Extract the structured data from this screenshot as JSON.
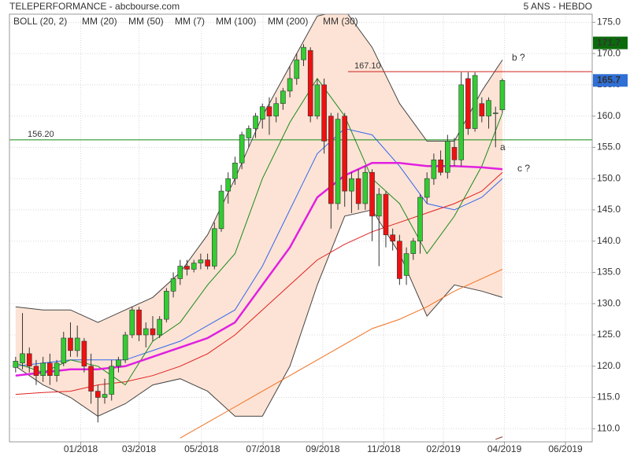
{
  "chart_data": {
    "type": "candlestick",
    "title": "TELEPERFORMANCE - abcbourse.com",
    "subtitle": "5 ANS - HEBDO",
    "x": [
      0,
      1,
      2,
      3,
      4,
      5,
      6,
      7,
      8,
      9,
      10,
      11,
      12,
      13,
      14,
      15,
      16,
      17,
      18,
      19,
      20,
      21,
      22,
      23,
      24,
      25,
      26,
      27,
      28,
      29,
      30,
      31,
      32,
      33,
      34,
      35,
      36,
      37,
      38,
      39,
      40,
      41,
      42,
      43,
      44,
      45,
      46,
      47,
      48,
      49,
      50,
      51,
      52,
      53,
      54,
      55,
      56,
      57,
      58,
      59,
      60,
      61,
      62,
      63,
      64,
      65,
      66,
      67,
      68,
      69,
      70,
      71
    ],
    "open": [
      119.8,
      120.5,
      122,
      120,
      118.5,
      120.5,
      118.5,
      120.5,
      124.5,
      122.5,
      124,
      120,
      116,
      115,
      115.5,
      120,
      121,
      125,
      129,
      125,
      126,
      125,
      127.5,
      132,
      134,
      136,
      135.5,
      136.5,
      137,
      136,
      142,
      148,
      150,
      152.5,
      156.5,
      158,
      159.5,
      161.5,
      160,
      162,
      164,
      166,
      169,
      170.5,
      160,
      165,
      160,
      146,
      160,
      148,
      150,
      146,
      151,
      144,
      147.5,
      141,
      140,
      134.5,
      138,
      140,
      147,
      150,
      153,
      151,
      155,
      153,
      166,
      158,
      162,
      160,
      160.5,
      161
    ],
    "high": [
      121.5,
      128.5,
      123,
      121,
      121.5,
      122,
      121,
      125.5,
      127,
      126.5,
      124.5,
      122,
      117,
      118,
      121,
      121.5,
      125.5,
      129.5,
      129.5,
      127,
      128,
      128,
      132.5,
      135,
      137,
      137,
      137,
      138,
      138,
      143,
      149,
      151,
      153.5,
      157.5,
      158.5,
      160.5,
      162,
      163,
      163,
      164.5,
      168,
      170,
      171.5,
      171,
      166,
      166,
      160.5,
      160.5,
      160.5,
      151,
      151.5,
      152,
      151.5,
      148.5,
      148,
      142,
      141,
      139,
      140.5,
      147.5,
      151,
      154,
      154.5,
      157,
      156.5,
      167,
      167,
      167,
      163,
      163,
      161.5,
      166
    ],
    "low": [
      119,
      119.5,
      119,
      117,
      117.5,
      117,
      117.5,
      120,
      121.5,
      121.5,
      119,
      114,
      111,
      114,
      114.5,
      119,
      120.5,
      124.5,
      124,
      123,
      124,
      124.5,
      127,
      131,
      133,
      134.5,
      135,
      135.5,
      135.5,
      135.5,
      141.5,
      146,
      149,
      151.5,
      155,
      156.5,
      158,
      157,
      159,
      161,
      163,
      165,
      168,
      159,
      159.5,
      154,
      142,
      145,
      145.5,
      144.5,
      145,
      145,
      140,
      136,
      139,
      138.5,
      133,
      133,
      137,
      138,
      146,
      149,
      150.5,
      150,
      152,
      152,
      157,
      157.5,
      159,
      158,
      155,
      160.5
    ],
    "close": [
      120.8,
      122,
      120,
      118.5,
      120.5,
      118.5,
      120.5,
      124.5,
      122.5,
      124.5,
      120,
      116,
      115,
      115.5,
      120,
      121,
      125,
      129,
      125,
      126,
      125,
      127.5,
      132,
      134,
      136,
      135.5,
      136.5,
      137,
      136,
      142,
      148,
      150,
      152.5,
      157,
      158,
      160,
      161.5,
      160,
      162,
      164,
      166,
      169,
      171,
      160,
      165,
      156,
      146,
      159.5,
      148,
      150,
      146,
      151,
      144,
      147.5,
      141,
      140,
      134,
      138,
      140,
      147,
      150,
      153,
      151,
      156,
      153,
      165,
      158,
      166.5,
      160,
      162.5,
      160.5,
      165.7
    ],
    "up_color": "#33cc33",
    "down_color": "#ee1111",
    "xlim": [
      -0.9,
      84.1
    ],
    "xticks": [
      {
        "value": 9.5,
        "label": "01/2018"
      },
      {
        "value": 18.0,
        "label": "03/2018"
      },
      {
        "value": 27.1,
        "label": "05/2018"
      },
      {
        "value": 36.1,
        "label": "07/2018"
      },
      {
        "value": 44.8,
        "label": "09/2018"
      },
      {
        "value": 53.7,
        "label": "11/2018"
      },
      {
        "value": 62.4,
        "label": "02/2019"
      },
      {
        "value": 71.3,
        "label": "04/2019"
      },
      {
        "value": 80.2,
        "label": "06/2019"
      }
    ],
    "ylim": [
      107.9,
      176.3
    ],
    "yticks": [
      {
        "value": 110,
        "label": "110.0"
      },
      {
        "value": 115,
        "label": "115.0"
      },
      {
        "value": 120,
        "label": "120.0"
      },
      {
        "value": 125,
        "label": "125.0"
      },
      {
        "value": 130,
        "label": "130.0"
      },
      {
        "value": 135,
        "label": "135.0"
      },
      {
        "value": 140,
        "label": "140.0"
      },
      {
        "value": 145,
        "label": "145.0"
      },
      {
        "value": 150,
        "label": "150.0"
      },
      {
        "value": 155,
        "label": "155.0"
      },
      {
        "value": 160,
        "label": "160.0"
      },
      {
        "value": 165,
        "label": "165.0"
      },
      {
        "value": 170,
        "label": "170.0"
      },
      {
        "value": 175,
        "label": "175.0"
      }
    ],
    "grid": true,
    "bollinger": {
      "name": "BOLL (20, 2)",
      "color": "#444444",
      "fill": "#fde3d5",
      "x": [
        0,
        4,
        8,
        12,
        16,
        20,
        24,
        28,
        32,
        36,
        40,
        44,
        48,
        52,
        56,
        60,
        64,
        68,
        71
      ],
      "upper": [
        129.5,
        129,
        129,
        127,
        129,
        131,
        135,
        141,
        150,
        160,
        168,
        176,
        177,
        171,
        162,
        156,
        156,
        164,
        169
      ],
      "lower": [
        120,
        117,
        115,
        112,
        114,
        117,
        118,
        116,
        112,
        112,
        120,
        133,
        144,
        145,
        138,
        128,
        133,
        132,
        131
      ]
    },
    "series": [
      {
        "name": "MM (20)",
        "color": "#3366ee",
        "x": [
          0,
          4,
          8,
          12,
          16,
          20,
          24,
          28,
          32,
          36,
          40,
          44,
          48,
          52,
          56,
          60,
          64,
          68,
          71
        ],
        "values": [
          120,
          120.5,
          121,
          121,
          121,
          122.5,
          124,
          126.5,
          129,
          136,
          145,
          154,
          158,
          157,
          152,
          146,
          145,
          147,
          150
        ]
      },
      {
        "name": "MM (50)",
        "color": "#e02020",
        "x": [
          0,
          4,
          8,
          12,
          16,
          20,
          24,
          28,
          32,
          36,
          40,
          44,
          48,
          52,
          56,
          60,
          64,
          68,
          71
        ],
        "values": [
          115.5,
          115.8,
          116,
          117,
          117.5,
          118.5,
          120,
          122,
          125,
          129,
          133,
          137,
          139.5,
          141.5,
          143,
          144.5,
          146,
          148,
          151
        ]
      },
      {
        "name": "MM (7)",
        "color": "#1a8a1a",
        "x": [
          0,
          4,
          8,
          12,
          16,
          20,
          24,
          28,
          32,
          36,
          40,
          44,
          48,
          52,
          56,
          60,
          64,
          68,
          71
        ],
        "values": [
          120.5,
          119,
          121,
          120,
          117,
          124,
          127,
          133,
          138,
          150,
          159,
          166,
          160,
          150,
          146,
          138,
          144,
          152,
          160.5
        ]
      },
      {
        "name": "MM (100)",
        "color": "#f07020",
        "x": [
          0,
          4,
          8,
          12,
          16,
          20,
          24,
          28,
          32,
          36,
          40,
          44,
          48,
          52,
          56,
          60,
          64,
          68,
          71
        ],
        "values": [
          null,
          null,
          null,
          null,
          null,
          null,
          108.5,
          111,
          113.5,
          116,
          118.5,
          121,
          123.5,
          126,
          127.5,
          129.5,
          132,
          134,
          135.5
        ]
      },
      {
        "name": "MM (200)",
        "color": "#8b3a2a",
        "x": [
          70,
          71
        ],
        "values": [
          108.3,
          108.7
        ]
      },
      {
        "name": "MM (30)",
        "color": "#e020e0",
        "x": [
          0,
          4,
          8,
          12,
          16,
          20,
          24,
          28,
          32,
          36,
          40,
          44,
          48,
          52,
          56,
          60,
          64,
          68,
          71
        ],
        "values": [
          118.5,
          119,
          119.5,
          119.5,
          120,
          121.5,
          123,
          124.5,
          127,
          133,
          139,
          147,
          150.5,
          152.5,
          152.5,
          152,
          152,
          151.8,
          151.5
        ]
      }
    ],
    "hlines": [
      {
        "value": 156.2,
        "label": "156.20",
        "color": "#118811"
      },
      {
        "value": 167.1,
        "label": "167.10",
        "color": "#cc2222"
      }
    ],
    "price_labels": [
      {
        "value": 171.7,
        "color": "#0b6b0b"
      },
      {
        "value": 165.7,
        "color": "#2f6fd6"
      }
    ],
    "annotations": [
      {
        "text": "a",
        "color": "#cc2222"
      },
      {
        "text": "b ?",
        "color": "#cc2222"
      },
      {
        "text": "c ?",
        "color": "#cc2222"
      }
    ]
  }
}
